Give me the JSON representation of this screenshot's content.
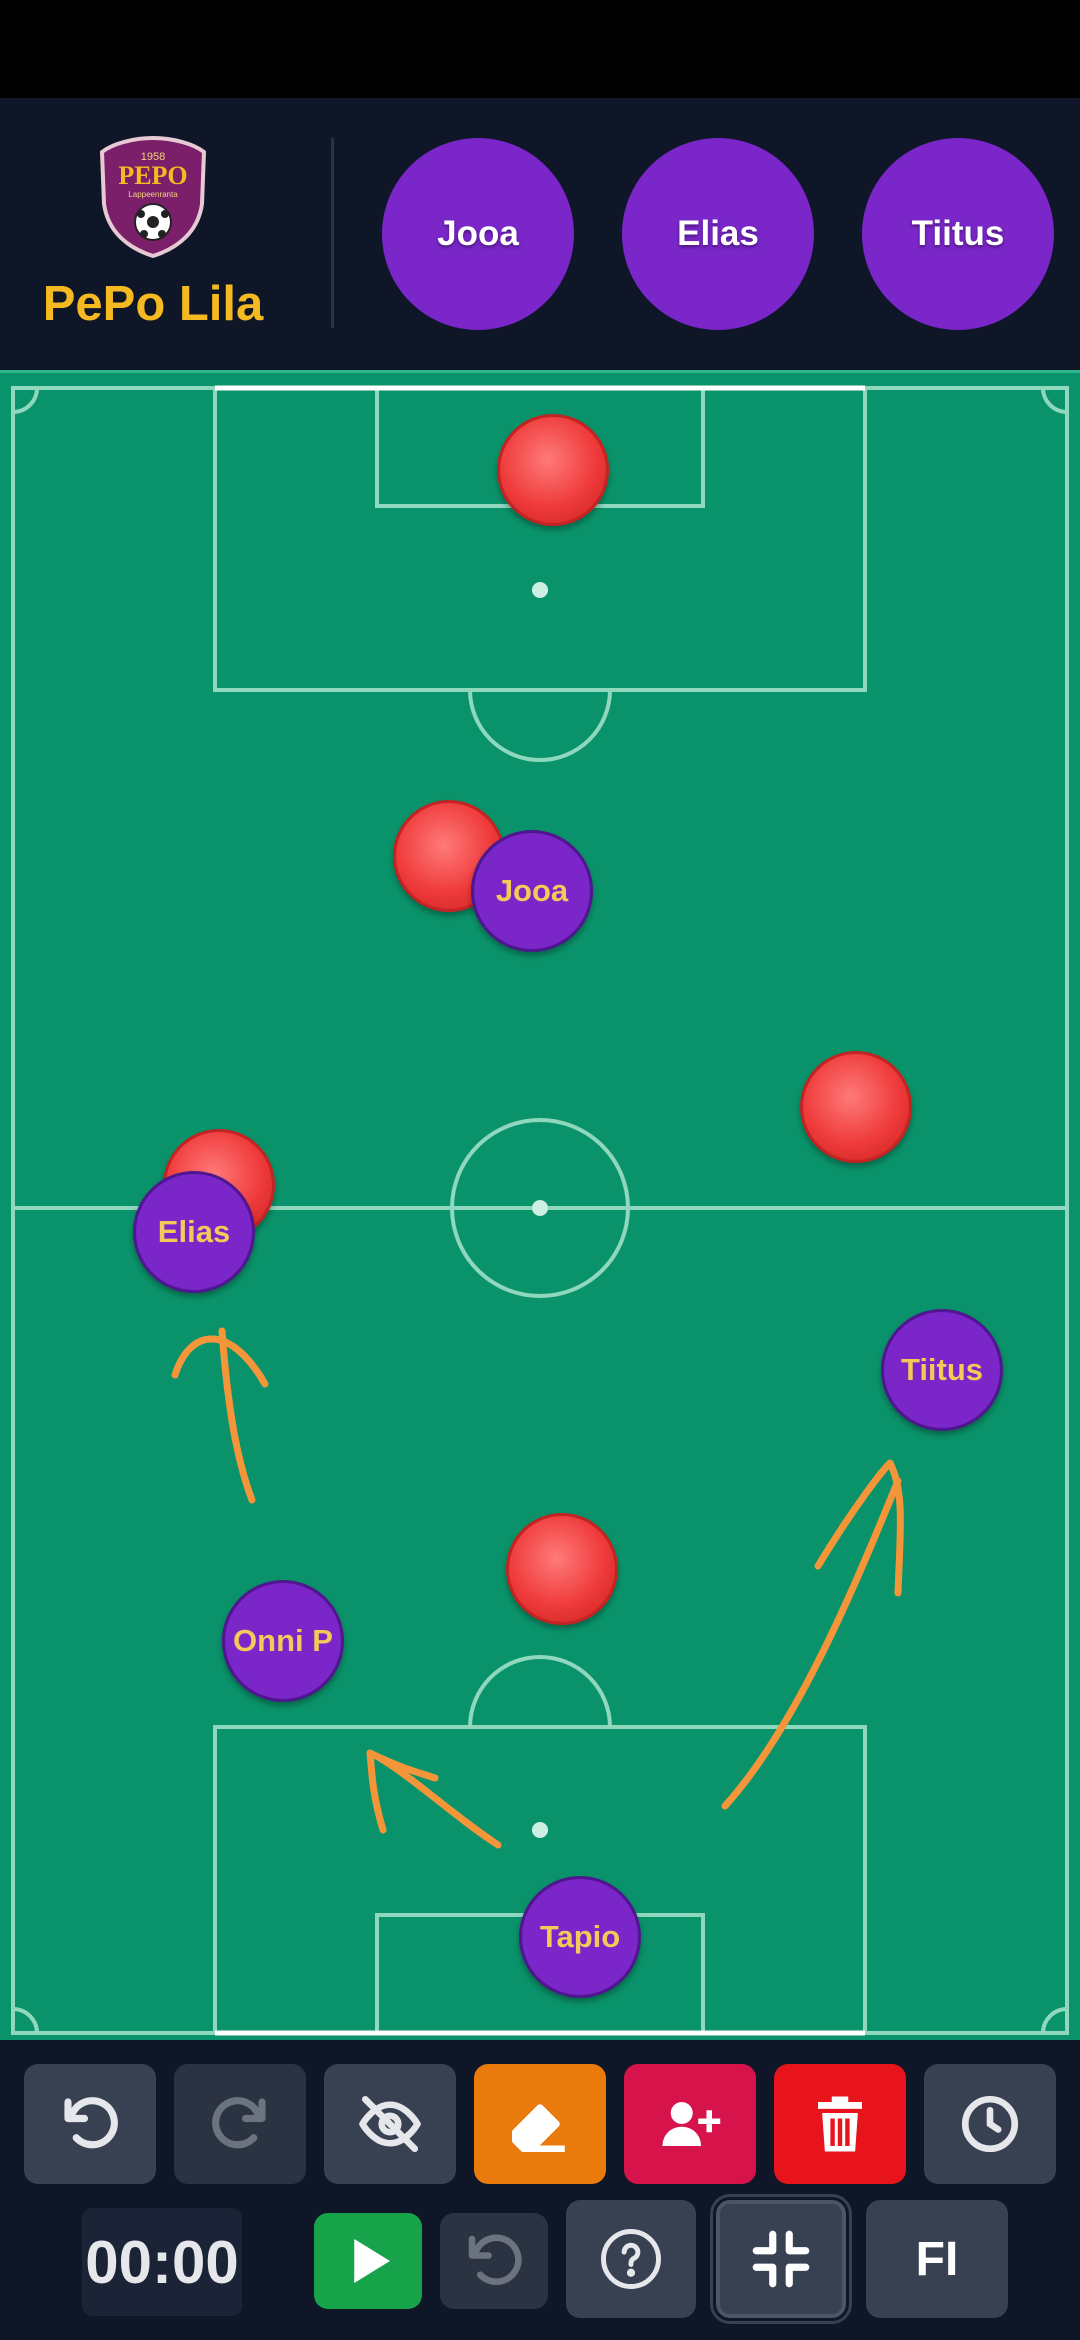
{
  "team": {
    "name": "PePo Lila",
    "logo_text": "PEPO",
    "logo_year": "1958",
    "logo_city": "Lappeenranta"
  },
  "bench": [
    {
      "name": "Jooa"
    },
    {
      "name": "Elias"
    },
    {
      "name": "Tiitus"
    }
  ],
  "field_players": [
    {
      "name": "Jooa"
    },
    {
      "name": "Elias"
    },
    {
      "name": "Tiitus"
    },
    {
      "name": "Onni P"
    },
    {
      "name": "Tapio"
    }
  ],
  "opponent_markers": 5,
  "colors": {
    "pitch": "#0a936a",
    "player": "#7a26c9",
    "player_text": "#f5c85a",
    "opponent": "#ef3b3b",
    "arrow": "#f5953a",
    "accent_team": "#f5b921"
  },
  "toolbar": {
    "icons": [
      "undo-icon",
      "redo-icon",
      "hide-icon",
      "eraser-icon",
      "add-player-icon",
      "trash-icon",
      "clock-icon",
      "play-icon",
      "reset-icon",
      "help-icon",
      "collapse-icon"
    ],
    "timer": "00:00",
    "language": "FI"
  }
}
